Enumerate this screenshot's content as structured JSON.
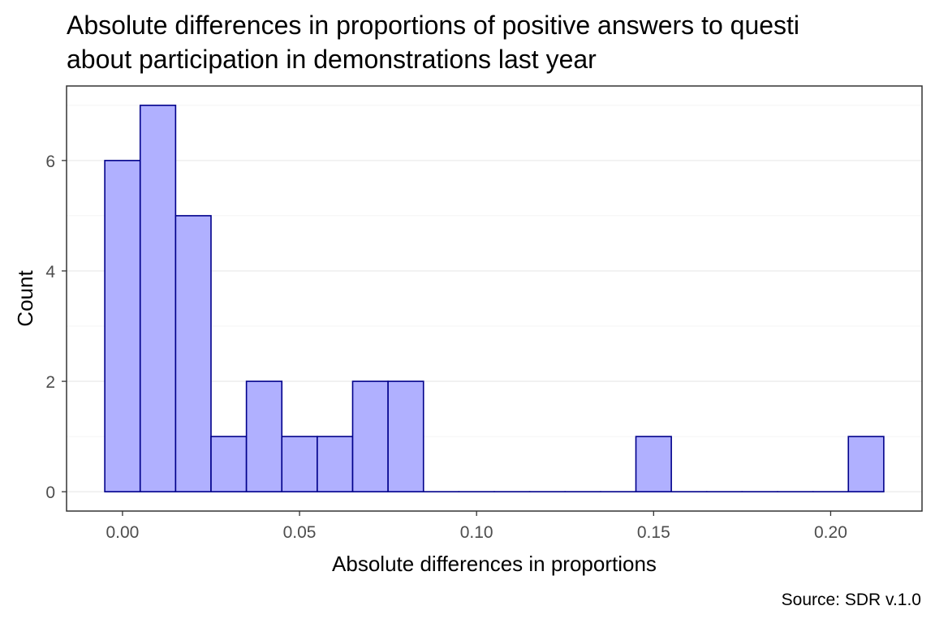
{
  "chart_data": {
    "type": "bar",
    "title_lines": [
      "Absolute differences in proportions of positive answers to questi",
      "about participation in demonstrations last year"
    ],
    "xlabel": "Absolute differences in proportions",
    "ylabel": "Count",
    "caption": "Source: SDR v.1.0",
    "bin_width": 0.01,
    "bins": [
      {
        "x_start": -0.005,
        "x_end": 0.005,
        "count": 6
      },
      {
        "x_start": 0.005,
        "x_end": 0.015,
        "count": 7
      },
      {
        "x_start": 0.015,
        "x_end": 0.025,
        "count": 5
      },
      {
        "x_start": 0.025,
        "x_end": 0.035,
        "count": 1
      },
      {
        "x_start": 0.035,
        "x_end": 0.045,
        "count": 2
      },
      {
        "x_start": 0.045,
        "x_end": 0.055,
        "count": 1
      },
      {
        "x_start": 0.055,
        "x_end": 0.065,
        "count": 1
      },
      {
        "x_start": 0.065,
        "x_end": 0.075,
        "count": 2
      },
      {
        "x_start": 0.075,
        "x_end": 0.085,
        "count": 2
      },
      {
        "x_start": 0.085,
        "x_end": 0.095,
        "count": 0
      },
      {
        "x_start": 0.095,
        "x_end": 0.105,
        "count": 0
      },
      {
        "x_start": 0.105,
        "x_end": 0.115,
        "count": 0
      },
      {
        "x_start": 0.115,
        "x_end": 0.125,
        "count": 0
      },
      {
        "x_start": 0.125,
        "x_end": 0.135,
        "count": 0
      },
      {
        "x_start": 0.135,
        "x_end": 0.145,
        "count": 0
      },
      {
        "x_start": 0.145,
        "x_end": 0.155,
        "count": 1
      },
      {
        "x_start": 0.155,
        "x_end": 0.165,
        "count": 0
      },
      {
        "x_start": 0.165,
        "x_end": 0.175,
        "count": 0
      },
      {
        "x_start": 0.175,
        "x_end": 0.185,
        "count": 0
      },
      {
        "x_start": 0.185,
        "x_end": 0.195,
        "count": 0
      },
      {
        "x_start": 0.195,
        "x_end": 0.205,
        "count": 0
      },
      {
        "x_start": 0.205,
        "x_end": 0.215,
        "count": 1
      }
    ],
    "x_ticks": [
      0.0,
      0.05,
      0.1,
      0.15,
      0.2
    ],
    "x_tick_labels": [
      "0.00",
      "0.05",
      "0.10",
      "0.15",
      "0.20"
    ],
    "y_ticks": [
      0,
      2,
      4,
      6
    ],
    "y_tick_labels": [
      "0",
      "2",
      "4",
      "6"
    ],
    "xlim": [
      -0.0158,
      0.2258
    ],
    "ylim": [
      -0.35,
      7.35
    ],
    "grid": true,
    "colors": {
      "bar_fill": "#b0b0ff",
      "bar_stroke": "#00008b",
      "panel_border": "#333333",
      "grid_major": "#ebebeb",
      "grid_minor": "#f4f4f4",
      "tick_text": "#4d4d4d"
    }
  }
}
